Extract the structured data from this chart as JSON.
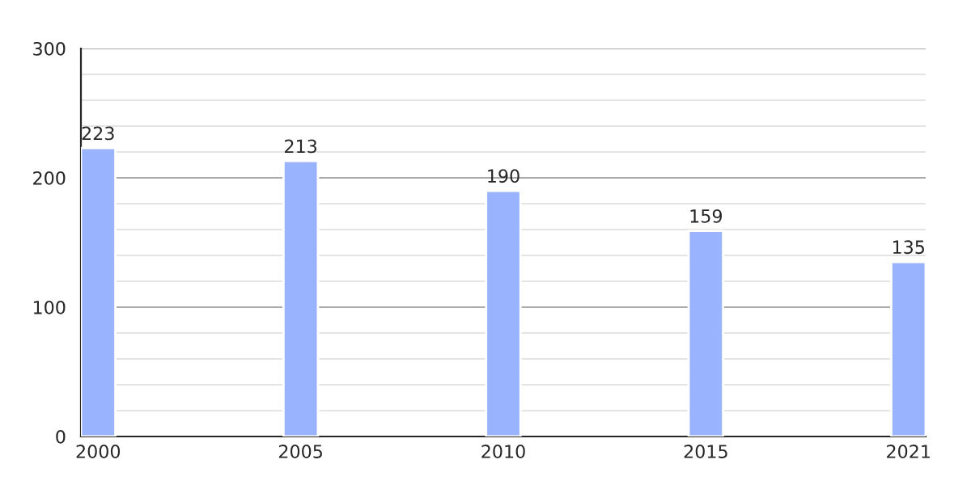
{
  "chart_data": {
    "type": "bar",
    "categories": [
      "2000",
      "2005",
      "2010",
      "2015",
      "2021"
    ],
    "values": [
      223,
      213,
      190,
      159,
      135
    ],
    "color": "#99b3ff",
    "ylim": [
      0,
      300
    ],
    "yticks": [
      0,
      {
        "value": 20,
        "label": null
      },
      {
        "value": 40,
        "label": null
      },
      {
        "value": 60,
        "label": null
      },
      {
        "value": 80,
        "label": null
      },
      100,
      {
        "value": 120,
        "label": null
      },
      {
        "value": 140,
        "label": null
      },
      {
        "value": 160,
        "label": null
      },
      {
        "value": 180,
        "label": null
      },
      200,
      {
        "value": 220,
        "label": null
      },
      {
        "value": 240,
        "label": null
      },
      {
        "value": 260,
        "label": null
      },
      {
        "value": 280,
        "label": null
      },
      300
    ],
    "grid": "y",
    "data_labels": true
  }
}
